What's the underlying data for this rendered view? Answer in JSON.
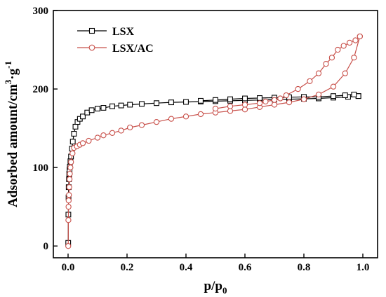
{
  "chart_data": {
    "type": "scatter",
    "xlabel": "p/p",
    "xlabel_sub": "0",
    "ylabel": "Adsorbed amount/cm",
    "ylabel_sup": "3",
    "ylabel_mid": "·g",
    "ylabel_sup2": "-1",
    "xlim": [
      -0.05,
      1.05
    ],
    "ylim": [
      -15,
      300
    ],
    "xticks": [
      0.0,
      0.2,
      0.4,
      0.6,
      0.8,
      1.0
    ],
    "xtick_labels": [
      "0.0",
      "0.2",
      "0.4",
      "0.6",
      "0.8",
      "1.0"
    ],
    "yticks": [
      0,
      100,
      200,
      300
    ],
    "ytick_labels": [
      "0",
      "100",
      "200",
      "300"
    ],
    "legend_position": "top-left",
    "grid": false,
    "series": [
      {
        "name": "LSX",
        "color": "#000000",
        "marker": "square",
        "branches": [
          {
            "x": [
              0.0005,
              0.001,
              0.0015,
              0.002,
              0.003,
              0.004,
              0.005,
              0.006,
              0.008,
              0.01,
              0.013,
              0.016,
              0.02,
              0.025,
              0.032,
              0.04,
              0.05,
              0.065,
              0.08,
              0.1,
              0.12,
              0.15,
              0.18,
              0.21,
              0.25,
              0.3,
              0.35,
              0.4,
              0.45,
              0.5,
              0.55,
              0.6,
              0.65,
              0.7,
              0.75,
              0.8,
              0.85,
              0.9,
              0.95,
              0.985
            ],
            "y": [
              4,
              40,
              62,
              75,
              85,
              92,
              97,
              101,
              108,
              114,
              124,
              133,
              143,
              152,
              158,
              162,
              165,
              170,
              173,
              175,
              176,
              178,
              179,
              180,
              181,
              182,
              183,
              183.5,
              184,
              184.5,
              185,
              185.5,
              186,
              186.5,
              187,
              187.5,
              188,
              189,
              190,
              191
            ]
          },
          {
            "x": [
              0.985,
              0.97,
              0.94,
              0.9,
              0.85,
              0.8,
              0.75,
              0.7,
              0.65,
              0.6,
              0.55,
              0.5,
              0.45
            ],
            "y": [
              191,
              193,
              192,
              191,
              190,
              190,
              189.5,
              189,
              188.5,
              188,
              187,
              186,
              185
            ]
          }
        ]
      },
      {
        "name": "LSX/AC",
        "color": "#c8504a",
        "marker": "circle",
        "branches": [
          {
            "x": [
              0.0005,
              0.001,
              0.0015,
              0.002,
              0.003,
              0.004,
              0.005,
              0.006,
              0.008,
              0.01,
              0.015,
              0.02,
              0.03,
              0.04,
              0.05,
              0.07,
              0.1,
              0.12,
              0.15,
              0.18,
              0.21,
              0.25,
              0.3,
              0.35,
              0.4,
              0.45,
              0.5,
              0.55,
              0.6,
              0.65,
              0.7,
              0.75,
              0.8,
              0.85,
              0.9,
              0.94,
              0.97,
              0.99
            ],
            "y": [
              0,
              33,
              50,
              58,
              65,
              75,
              85,
              92,
              100,
              107,
              118,
              125,
              127,
              129,
              131,
              134,
              138,
              141,
              144,
              147,
              151,
              154,
              158,
              162,
              165,
              168,
              170,
              172,
              174,
              177,
              180,
              183,
              187,
              193,
              203,
              220,
              240,
              267
            ]
          },
          {
            "x": [
              0.99,
              0.975,
              0.955,
              0.935,
              0.915,
              0.895,
              0.875,
              0.85,
              0.82,
              0.78,
              0.74,
              0.72,
              0.7,
              0.67,
              0.65,
              0.6,
              0.55,
              0.5
            ],
            "y": [
              267,
              262,
              259,
              255,
              250,
              240,
              232,
              220,
              210,
              200,
              192,
              188,
              186,
              184,
              182,
              180,
              178,
              175
            ]
          }
        ]
      }
    ]
  }
}
